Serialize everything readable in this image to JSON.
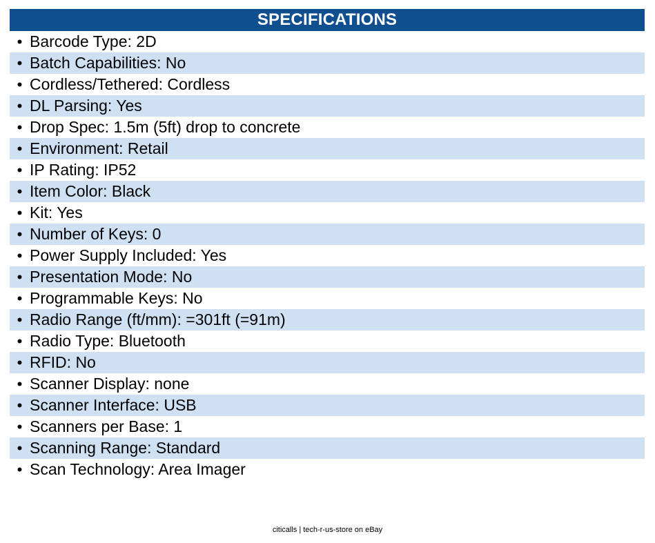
{
  "header": {
    "title": "SPECIFICATIONS"
  },
  "bullet": "•",
  "specs": [
    "Barcode Type: 2D",
    "Batch Capabilities: No",
    "Cordless/Tethered: Cordless",
    "DL Parsing: Yes",
    "Drop Spec: 1.5m (5ft) drop to concrete",
    "Environment: Retail",
    "IP Rating: IP52",
    "Item Color: Black",
    "Kit: Yes",
    "Number of Keys: 0",
    "Power Supply Included: Yes",
    "Presentation Mode: No",
    "Programmable Keys: No",
    "Radio Range (ft/mm): =301ft (=91m)",
    "Radio Type: Bluetooth",
    "RFID: No",
    "Scanner Display: none",
    "Scanner Interface: USB",
    "Scanners per Base: 1",
    "Scanning Range: Standard",
    "Scan Technology: Area Imager"
  ],
  "footer": {
    "text": "citicalls | tech-r-us-store on eBay"
  }
}
